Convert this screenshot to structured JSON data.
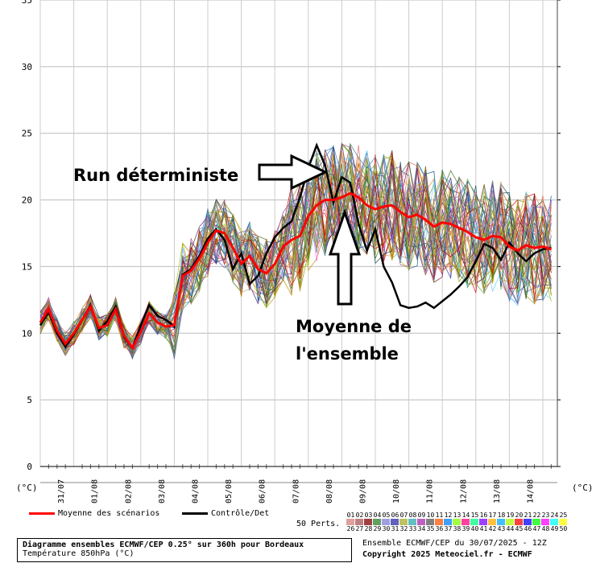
{
  "chart_data": {
    "type": "line",
    "ylim": [
      0,
      35
    ],
    "y_ticks": [
      0,
      5,
      10,
      15,
      20,
      25,
      30,
      35
    ],
    "y_unit_left": "(°C)",
    "y_unit_right": "(°C)",
    "x_ticks": [
      "31/07",
      "01/08",
      "02/08",
      "03/08",
      "04/08",
      "05/08",
      "06/08",
      "07/08",
      "08/08",
      "09/08",
      "10/08",
      "11/08",
      "12/08",
      "13/08",
      "14/08"
    ],
    "x_range_days": [
      0,
      15
    ],
    "step_hours": 6,
    "grid": true,
    "series": [
      {
        "name": "Moyenne des scénarios",
        "color": "#ff0000",
        "values": [
          10.8,
          11.8,
          10.2,
          9.2,
          10.0,
          11.0,
          12.0,
          10.4,
          10.6,
          11.8,
          9.8,
          8.9,
          10.1,
          11.5,
          10.8,
          10.5,
          10.6,
          14.3,
          14.7,
          15.6,
          16.8,
          17.7,
          17.5,
          16.4,
          15.2,
          15.8,
          14.8,
          14.5,
          15.2,
          16.5,
          17.0,
          17.3,
          18.8,
          19.6,
          20.0,
          20.0,
          20.2,
          20.5,
          20.2,
          19.6,
          19.3,
          19.5,
          19.6,
          19.1,
          18.7,
          18.9,
          18.5,
          18.0,
          18.3,
          18.2,
          17.9,
          17.6,
          17.2,
          17.0,
          17.3,
          17.2,
          16.5,
          16.2,
          16.6,
          16.4,
          16.5,
          16.3
        ]
      },
      {
        "name": "Contrôle/Det",
        "color": "#000000",
        "values": [
          10.6,
          11.6,
          10.0,
          9.0,
          9.9,
          11.0,
          12.1,
          10.2,
          10.9,
          12.0,
          9.7,
          8.9,
          10.6,
          12.1,
          11.3,
          11.0,
          10.5,
          14.4,
          14.8,
          15.8,
          17.1,
          17.8,
          17.0,
          14.8,
          16.0,
          13.7,
          14.3,
          16.0,
          17.2,
          17.9,
          18.4,
          20.2,
          22.4,
          24.1,
          22.6,
          19.8,
          21.7,
          21.3,
          18.2,
          16.2,
          17.8,
          15.0,
          13.8,
          12.1,
          11.9,
          12.0,
          12.3,
          11.9,
          12.4,
          12.9,
          13.5,
          14.2,
          15.4,
          16.7,
          16.4,
          15.5,
          16.8,
          16.0,
          15.4,
          16.0,
          16.3,
          16.4
        ]
      }
    ],
    "ensemble_members": 50,
    "annotations": [
      "Run déterministe",
      "Moyenne de",
      "l'ensemble"
    ]
  },
  "legend": {
    "mean_label": "Moyenne des scénarios",
    "control_label": "Contrôle/Det",
    "perts_label": "50 Perts.",
    "pert_ids_row1": [
      "01",
      "02",
      "03",
      "04",
      "05",
      "06",
      "07",
      "08",
      "09",
      "10",
      "11",
      "12",
      "13",
      "14",
      "15",
      "16",
      "17",
      "18",
      "19",
      "20",
      "21",
      "22",
      "23",
      "24",
      "25"
    ],
    "pert_ids_row2": [
      "26",
      "27",
      "28",
      "29",
      "30",
      "31",
      "32",
      "33",
      "34",
      "35",
      "36",
      "37",
      "38",
      "39",
      "40",
      "41",
      "42",
      "43",
      "44",
      "45",
      "46",
      "47",
      "48",
      "49",
      "50"
    ],
    "pert_colors": [
      "#e0a0a0",
      "#c08080",
      "#a04040",
      "#60a060",
      "#a0a0e0",
      "#6060c0",
      "#c0c060",
      "#60c0c0",
      "#c060c0",
      "#808080",
      "#ff8040",
      "#40a0ff",
      "#a0ff40",
      "#ff40a0",
      "#40ffa0",
      "#a040ff",
      "#ffc040",
      "#40c0ff",
      "#c0ff40",
      "#ff4040",
      "#4040ff",
      "#40ff40",
      "#ff40ff",
      "#40ffff",
      "#ffff40"
    ]
  },
  "footer": {
    "title_line1": "Diagramme ensembles ECMWF/CEP 0.25° sur 360h pour Bordeaux",
    "title_line2": "Température 850hPa (°C)",
    "run_info": "Ensemble ECMWF/CEP du 30/07/2025 - 12Z",
    "copyright": "Copyright 2025 Meteociel.fr - ECMWF"
  }
}
